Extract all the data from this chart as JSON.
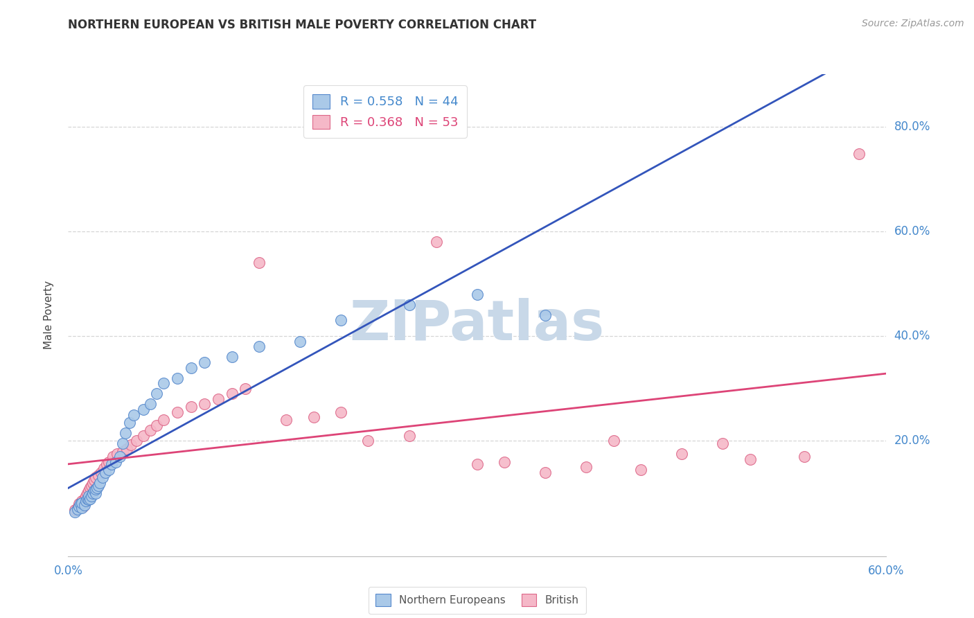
{
  "title": "NORTHERN EUROPEAN VS BRITISH MALE POVERTY CORRELATION CHART",
  "source": "Source: ZipAtlas.com",
  "ylabel": "Male Poverty",
  "xlim": [
    0.0,
    0.6
  ],
  "ylim": [
    -0.02,
    0.9
  ],
  "ytick_vals": [
    0.2,
    0.4,
    0.6,
    0.8
  ],
  "ytick_labels": [
    "20.0%",
    "40.0%",
    "60.0%",
    "80.0%"
  ],
  "xtick_vals": [
    0.0,
    0.6
  ],
  "xtick_labels": [
    "0.0%",
    "60.0%"
  ],
  "background_color": "#ffffff",
  "grid_color": "#cccccc",
  "watermark": "ZIPatlas",
  "watermark_color": "#c8d8e8",
  "ne_color": "#aac9e8",
  "ne_edge_color": "#5588cc",
  "british_color": "#f5b8c8",
  "british_edge_color": "#dd6688",
  "ne_R": 0.558,
  "ne_N": 44,
  "british_R": 0.368,
  "british_N": 53,
  "ne_trendline_color": "#3355bb",
  "british_trendline_color": "#dd4477",
  "ne_x": [
    0.005,
    0.007,
    0.008,
    0.009,
    0.01,
    0.01,
    0.012,
    0.013,
    0.014,
    0.015,
    0.015,
    0.016,
    0.017,
    0.018,
    0.019,
    0.02,
    0.02,
    0.021,
    0.022,
    0.023,
    0.025,
    0.027,
    0.03,
    0.032,
    0.035,
    0.038,
    0.04,
    0.042,
    0.045,
    0.048,
    0.055,
    0.06,
    0.065,
    0.07,
    0.08,
    0.09,
    0.1,
    0.12,
    0.14,
    0.17,
    0.2,
    0.25,
    0.3,
    0.35
  ],
  "ne_y": [
    0.065,
    0.07,
    0.075,
    0.08,
    0.072,
    0.082,
    0.078,
    0.085,
    0.09,
    0.088,
    0.095,
    0.09,
    0.095,
    0.1,
    0.105,
    0.1,
    0.108,
    0.11,
    0.115,
    0.12,
    0.13,
    0.14,
    0.145,
    0.155,
    0.16,
    0.17,
    0.195,
    0.215,
    0.235,
    0.25,
    0.26,
    0.27,
    0.29,
    0.31,
    0.32,
    0.34,
    0.35,
    0.36,
    0.38,
    0.39,
    0.43,
    0.46,
    0.48,
    0.44
  ],
  "british_x": [
    0.005,
    0.007,
    0.008,
    0.01,
    0.011,
    0.012,
    0.013,
    0.014,
    0.015,
    0.016,
    0.017,
    0.018,
    0.019,
    0.02,
    0.022,
    0.024,
    0.026,
    0.028,
    0.03,
    0.033,
    0.036,
    0.04,
    0.043,
    0.046,
    0.05,
    0.055,
    0.06,
    0.065,
    0.07,
    0.08,
    0.09,
    0.1,
    0.11,
    0.12,
    0.13,
    0.14,
    0.16,
    0.18,
    0.2,
    0.22,
    0.25,
    0.27,
    0.3,
    0.32,
    0.35,
    0.38,
    0.4,
    0.42,
    0.45,
    0.48,
    0.5,
    0.54,
    0.58
  ],
  "british_y": [
    0.068,
    0.072,
    0.08,
    0.085,
    0.075,
    0.09,
    0.095,
    0.1,
    0.105,
    0.11,
    0.115,
    0.12,
    0.125,
    0.13,
    0.135,
    0.14,
    0.148,
    0.155,
    0.16,
    0.17,
    0.175,
    0.18,
    0.185,
    0.192,
    0.2,
    0.21,
    0.22,
    0.23,
    0.24,
    0.255,
    0.265,
    0.27,
    0.28,
    0.29,
    0.3,
    0.54,
    0.24,
    0.245,
    0.255,
    0.2,
    0.21,
    0.58,
    0.155,
    0.16,
    0.14,
    0.15,
    0.2,
    0.145,
    0.175,
    0.195,
    0.165,
    0.17,
    0.748
  ]
}
